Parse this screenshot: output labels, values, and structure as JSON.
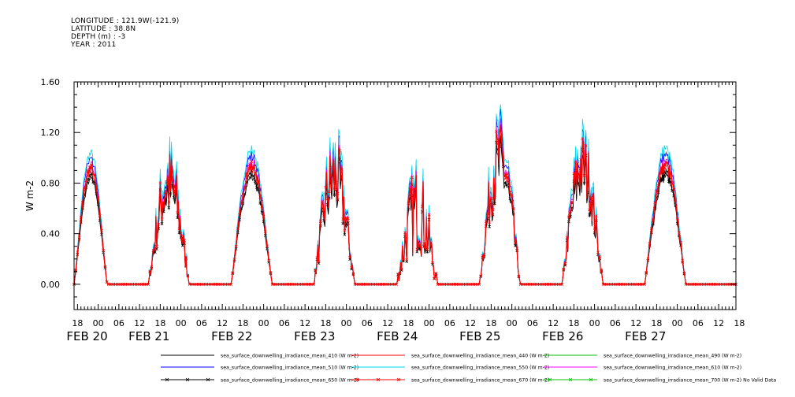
{
  "header": {
    "longitude": "LONGITUDE : 121.9W(-121.9)",
    "latitude": "LATITUDE : 38.8N",
    "depth": "DEPTH (m) : -3",
    "year": "YEAR : 2011"
  },
  "chart_data": {
    "type": "line",
    "ylabel": "W m-2",
    "ylim": [
      -0.2,
      1.6
    ],
    "yticks": [
      "0.00",
      "0.40",
      "0.80",
      "1.20",
      "1.60"
    ],
    "ytick_values": [
      0.0,
      0.4,
      0.8,
      1.2,
      1.6
    ],
    "xlim_hours": [
      -7,
      185
    ],
    "xtick_labels": [
      "18",
      "00",
      "06",
      "12",
      "18",
      "00",
      "06",
      "12",
      "18",
      "00",
      "06",
      "12",
      "18",
      "00",
      "06",
      "12",
      "18",
      "00",
      "06",
      "12",
      "18",
      "00",
      "06",
      "12",
      "18",
      "00",
      "06",
      "12",
      "18",
      "00",
      "06",
      "12",
      "18"
    ],
    "xtick_hours": [
      -6,
      0,
      6,
      12,
      18,
      24,
      30,
      36,
      42,
      48,
      54,
      60,
      66,
      72,
      78,
      84,
      90,
      96,
      102,
      108,
      114,
      120,
      126,
      132,
      138,
      144,
      150,
      156,
      162,
      168,
      174,
      180,
      186
    ],
    "date_labels": [
      {
        "text": "FEB 20",
        "hour": -6
      },
      {
        "text": "FEB 21",
        "hour": 12
      },
      {
        "text": "FEB 22",
        "hour": 36
      },
      {
        "text": "FEB 23",
        "hour": 60
      },
      {
        "text": "FEB 24",
        "hour": 84
      },
      {
        "text": "FEB 25",
        "hour": 108
      },
      {
        "text": "FEB 26",
        "hour": 132
      },
      {
        "text": "FEB 27",
        "hour": 156
      }
    ],
    "days": [
      {
        "rise": -7,
        "set": 2.6,
        "peak": 0.92,
        "noise": 0.03
      },
      {
        "rise": 14.5,
        "set": 26.5,
        "peak": 0.8,
        "noise": 0.28
      },
      {
        "rise": 38.5,
        "set": 50.5,
        "peak": 0.94,
        "noise": 0.04
      },
      {
        "rise": 62.5,
        "set": 74.5,
        "peak": 0.86,
        "noise": 0.3
      },
      {
        "rise": 86.5,
        "set": 98.5,
        "peak": 0.6,
        "noise": 0.35
      },
      {
        "rise": 110.5,
        "set": 122.5,
        "peak": 1.0,
        "noise": 0.3
      },
      {
        "rise": 134.5,
        "set": 146.5,
        "peak": 0.95,
        "noise": 0.25
      },
      {
        "rise": 158.5,
        "set": 170.5,
        "peak": 0.95,
        "noise": 0.05
      }
    ],
    "series": [
      {
        "name": "sea_surface_downwelling_irradiance_mean_410 (W m-2)",
        "color": "#000000",
        "factor": 0.9,
        "marker": false,
        "data": false
      },
      {
        "name": "sea_surface_downwelling_irradiance_mean_440 (W m-2)",
        "color": "#ff0000",
        "factor": 0.97,
        "marker": false,
        "data": true
      },
      {
        "name": "sea_surface_downwelling_irradiance_mean_490 (W m-2)",
        "color": "#00c000",
        "factor": 1.0,
        "marker": false,
        "data": false
      },
      {
        "name": "sea_surface_downwelling_irradiance_mean_510 (W m-2)",
        "color": "#0000ff",
        "factor": 1.08,
        "marker": false,
        "data": true
      },
      {
        "name": "sea_surface_downwelling_irradiance_mean_550 (W m-2)",
        "color": "#00d8e8",
        "factor": 1.13,
        "marker": false,
        "data": true
      },
      {
        "name": "sea_surface_downwelling_irradiance_mean_610 (W m-2)",
        "color": "#ff00ff",
        "factor": 1.02,
        "marker": false,
        "data": true
      },
      {
        "name": "sea_surface_downwelling_irradiance_mean_650 (W m-2)",
        "color": "#000000",
        "factor": 0.93,
        "marker": true,
        "data": true
      },
      {
        "name": "sea_surface_downwelling_irradiance_mean_670 (W m-2)",
        "color": "#ff0000",
        "factor": 1.0,
        "marker": true,
        "data": true
      },
      {
        "name": "sea_surface_downwelling_irradiance_mean_700 (W m-2) No Valid Data",
        "color": "#00c000",
        "factor": 0.0,
        "marker": true,
        "data": false
      }
    ]
  }
}
